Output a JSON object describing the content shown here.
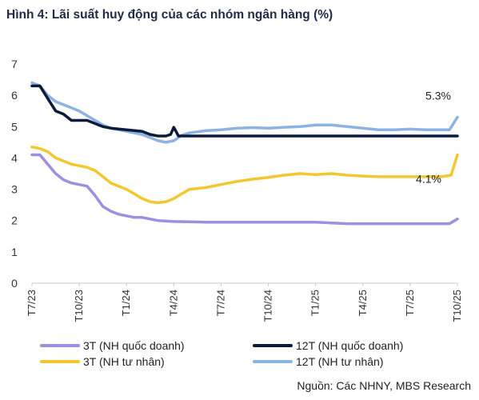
{
  "title": "Hình 4: Lãi suất huy động của các nhóm ngân hàng (%)",
  "source": "Nguồn: Các NHNY, MBS Research",
  "chart_data": {
    "type": "line",
    "title": "Hình 4: Lãi suất huy động của các nhóm ngân hàng (%)",
    "xlabel": "",
    "ylabel": "",
    "ylim": [
      0,
      7
    ],
    "yticks": [
      0,
      1,
      2,
      3,
      4,
      5,
      6,
      7
    ],
    "x_range": [
      0,
      27
    ],
    "x_ticks": [
      {
        "label": "T7/23",
        "x": 0
      },
      {
        "label": "T10/23",
        "x": 3
      },
      {
        "label": "T1/24",
        "x": 6
      },
      {
        "label": "T4/24",
        "x": 9
      },
      {
        "label": "T7/24",
        "x": 12
      },
      {
        "label": "T10/24",
        "x": 15
      },
      {
        "label": "T1/25",
        "x": 18
      },
      {
        "label": "T4/25",
        "x": 21
      },
      {
        "label": "T7/25",
        "x": 24
      },
      {
        "label": "T10/25",
        "x": 27
      }
    ],
    "grid": false,
    "legend_position": "bottom",
    "annotations": [
      {
        "text": "5.3%",
        "x": 27,
        "y": 5.3
      },
      {
        "text": "4.1%",
        "x": 27,
        "y": 4.1
      }
    ],
    "series": [
      {
        "name": "12T (NH tư nhân)",
        "color": "#8db3e2",
        "points": [
          [
            0,
            6.4
          ],
          [
            0.5,
            6.3
          ],
          [
            1,
            6.0
          ],
          [
            1.5,
            5.8
          ],
          [
            2,
            5.7
          ],
          [
            2.5,
            5.6
          ],
          [
            3,
            5.5
          ],
          [
            3.5,
            5.35
          ],
          [
            4,
            5.2
          ],
          [
            4.5,
            5.05
          ],
          [
            5,
            4.95
          ],
          [
            5.5,
            4.9
          ],
          [
            6,
            4.85
          ],
          [
            6.5,
            4.8
          ],
          [
            7,
            4.75
          ],
          [
            7.5,
            4.65
          ],
          [
            8,
            4.55
          ],
          [
            8.5,
            4.5
          ],
          [
            9,
            4.55
          ],
          [
            9.5,
            4.72
          ],
          [
            10,
            4.8
          ],
          [
            11,
            4.87
          ],
          [
            12,
            4.9
          ],
          [
            13,
            4.95
          ],
          [
            14,
            4.97
          ],
          [
            15,
            4.95
          ],
          [
            16,
            4.98
          ],
          [
            17,
            5.0
          ],
          [
            18,
            5.05
          ],
          [
            19,
            5.05
          ],
          [
            20,
            5.0
          ],
          [
            21,
            4.95
          ],
          [
            22,
            4.9
          ],
          [
            23,
            4.9
          ],
          [
            24,
            4.92
          ],
          [
            25,
            4.9
          ],
          [
            26,
            4.9
          ],
          [
            26.5,
            4.9
          ],
          [
            27,
            5.3
          ]
        ]
      },
      {
        "name": "12T (NH quốc doanh)",
        "color": "#0c1b3d",
        "points": [
          [
            0,
            6.3
          ],
          [
            0.5,
            6.3
          ],
          [
            1,
            5.9
          ],
          [
            1.5,
            5.5
          ],
          [
            2,
            5.4
          ],
          [
            2.5,
            5.2
          ],
          [
            3,
            5.2
          ],
          [
            3.5,
            5.2
          ],
          [
            4,
            5.1
          ],
          [
            4.5,
            5.0
          ],
          [
            5,
            4.95
          ],
          [
            6,
            4.9
          ],
          [
            7,
            4.85
          ],
          [
            7.5,
            4.75
          ],
          [
            8,
            4.7
          ],
          [
            8.5,
            4.7
          ],
          [
            8.8,
            4.75
          ],
          [
            9,
            4.98
          ],
          [
            9.3,
            4.7
          ],
          [
            10,
            4.7
          ],
          [
            27,
            4.7
          ]
        ]
      },
      {
        "name": "3T (NH tư nhân)",
        "color": "#f2c830",
        "points": [
          [
            0,
            4.35
          ],
          [
            0.5,
            4.3
          ],
          [
            1,
            4.2
          ],
          [
            1.5,
            4.0
          ],
          [
            2,
            3.9
          ],
          [
            2.5,
            3.8
          ],
          [
            3,
            3.75
          ],
          [
            3.5,
            3.7
          ],
          [
            4,
            3.6
          ],
          [
            4.5,
            3.4
          ],
          [
            5,
            3.2
          ],
          [
            6,
            3.0
          ],
          [
            6.5,
            2.85
          ],
          [
            7,
            2.7
          ],
          [
            7.5,
            2.6
          ],
          [
            8,
            2.57
          ],
          [
            8.5,
            2.6
          ],
          [
            9,
            2.7
          ],
          [
            9.5,
            2.85
          ],
          [
            10,
            3.0
          ],
          [
            11,
            3.05
          ],
          [
            12,
            3.15
          ],
          [
            13,
            3.25
          ],
          [
            14,
            3.32
          ],
          [
            15,
            3.38
          ],
          [
            16,
            3.45
          ],
          [
            17,
            3.5
          ],
          [
            18,
            3.47
          ],
          [
            19,
            3.5
          ],
          [
            20,
            3.45
          ],
          [
            21,
            3.42
          ],
          [
            22,
            3.4
          ],
          [
            23,
            3.4
          ],
          [
            24,
            3.4
          ],
          [
            25,
            3.4
          ],
          [
            26,
            3.4
          ],
          [
            26.6,
            3.45
          ],
          [
            27,
            4.1
          ]
        ]
      },
      {
        "name": "3T (NH quốc doanh)",
        "color": "#9f8fe0",
        "points": [
          [
            0,
            4.1
          ],
          [
            0.5,
            4.1
          ],
          [
            1,
            3.8
          ],
          [
            1.5,
            3.5
          ],
          [
            2,
            3.3
          ],
          [
            2.5,
            3.2
          ],
          [
            3,
            3.15
          ],
          [
            3.5,
            3.1
          ],
          [
            4,
            2.8
          ],
          [
            4.5,
            2.45
          ],
          [
            5,
            2.3
          ],
          [
            5.5,
            2.2
          ],
          [
            6,
            2.15
          ],
          [
            6.5,
            2.1
          ],
          [
            7,
            2.1
          ],
          [
            7.5,
            2.05
          ],
          [
            8,
            2.0
          ],
          [
            9,
            1.97
          ],
          [
            10,
            1.96
          ],
          [
            11,
            1.95
          ],
          [
            12,
            1.95
          ],
          [
            15,
            1.95
          ],
          [
            18,
            1.95
          ],
          [
            20,
            1.9
          ],
          [
            21,
            1.9
          ],
          [
            24,
            1.9
          ],
          [
            26.5,
            1.9
          ],
          [
            27,
            2.05
          ]
        ]
      }
    ]
  },
  "legend": [
    {
      "label": "3T (NH quốc doanh)",
      "color": "#9f8fe0"
    },
    {
      "label": "12T (NH quốc doanh)",
      "color": "#0c1b3d"
    },
    {
      "label": "3T (NH tư nhân)",
      "color": "#f2c830"
    },
    {
      "label": "12T (NH tư nhân)",
      "color": "#8db3e2"
    }
  ]
}
